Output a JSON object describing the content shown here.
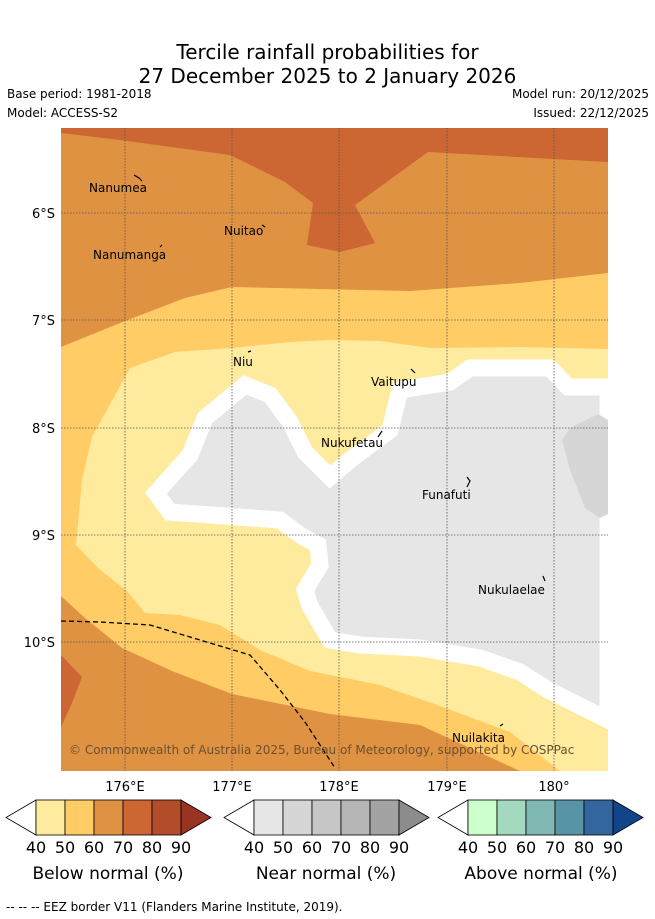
{
  "header": {
    "title_line1": "Tercile rainfall probabilities for",
    "title_line2": "27 December 2025 to 2 January 2026",
    "base_period": "Base period: 1981-2018",
    "model": "Model: ACCESS-S2",
    "model_run": "Model run: 20/12/2025",
    "issued": "Issued: 22/12/2025"
  },
  "map": {
    "lat_labels": [
      "6°S",
      "7°S",
      "8°S",
      "9°S",
      "10°S"
    ],
    "lon_labels": [
      "176°E",
      "177°E",
      "178°E",
      "179°E",
      "180°"
    ],
    "places": [
      "Nanumea",
      "Nuitao",
      "Nanumanga",
      "Niu",
      "Vaitupu",
      "Nukufetau",
      "Funafuti",
      "Nukulaelae",
      "Nuilakita"
    ],
    "copyright": "© Commonwealth of Australia 2025, Bureau of Meteorology, supported by COSPPac"
  },
  "legend": {
    "ticks": [
      "40",
      "50",
      "60",
      "70",
      "80",
      "90"
    ],
    "below": {
      "label": "Below normal (%)",
      "colors": [
        "#ffeb9e",
        "#ffcc66",
        "#e09243",
        "#cc6633",
        "#b34d29",
        "#993322"
      ]
    },
    "near": {
      "label": "Near normal (%)",
      "colors": [
        "#e6e6e6",
        "#d6d6d6",
        "#c6c6c6",
        "#b6b6b6",
        "#a3a3a3",
        "#8c8c8c"
      ]
    },
    "above": {
      "label": "Above normal (%)",
      "colors": [
        "#ccffcc",
        "#a3d9bf",
        "#80b8b3",
        "#5994a6",
        "#33669e",
        "#114488"
      ]
    }
  },
  "footer": {
    "eez_note": "-- -- -- EEZ border V11 (Flanders Marine Institute, 2019)."
  }
}
